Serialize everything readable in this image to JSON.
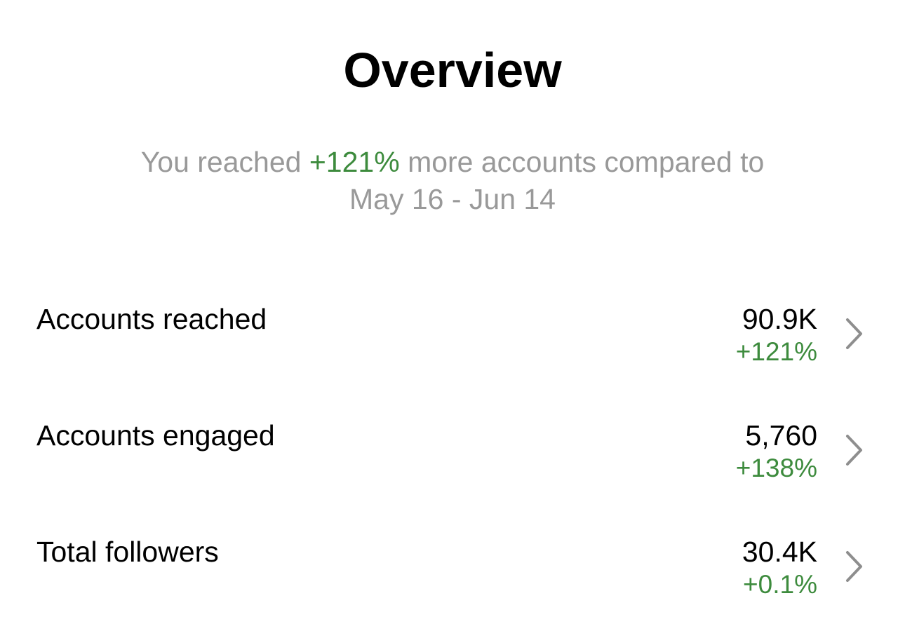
{
  "header": {
    "title": "Overview"
  },
  "summary": {
    "before": "You reached",
    "highlight": "+121%",
    "after": "more accounts compared to",
    "period": "May 16 - Jun 14"
  },
  "rows": [
    {
      "label": "Accounts reached",
      "value": "90.9K",
      "change": "+121%"
    },
    {
      "label": "Accounts engaged",
      "value": "5,760",
      "change": "+138%"
    },
    {
      "label": "Total followers",
      "value": "30.4K",
      "change": "+0.1%"
    }
  ]
}
